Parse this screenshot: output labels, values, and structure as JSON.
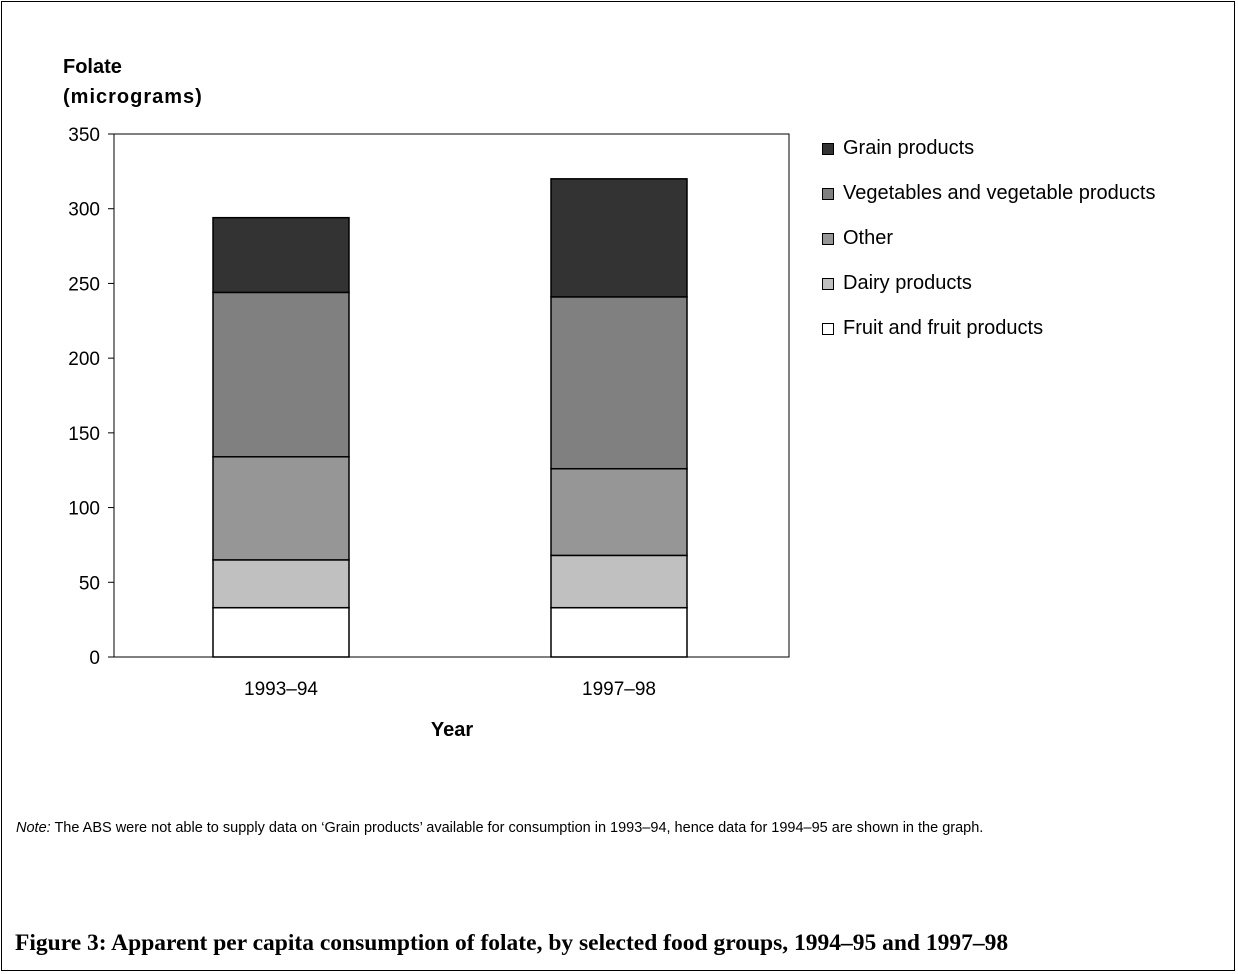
{
  "chart_data": {
    "type": "bar",
    "stacked": true,
    "ylabel": [
      "Folate",
      "(micrograms)"
    ],
    "xlabel": "Year",
    "categories": [
      "1993–94",
      "1997–98"
    ],
    "ylim": [
      0,
      350
    ],
    "yticks": [
      0,
      50,
      100,
      150,
      200,
      250,
      300,
      350
    ],
    "grid": false,
    "legend_position": "right",
    "series": [
      {
        "name": "Fruit and fruit products",
        "values": [
          33,
          33
        ],
        "color": "#ffffff"
      },
      {
        "name": "Dairy products",
        "values": [
          32,
          35
        ],
        "color": "#c0c0c0"
      },
      {
        "name": "Other",
        "values": [
          69,
          58
        ],
        "color": "#969696"
      },
      {
        "name": "Vegetables and vegetable products",
        "values": [
          110,
          115
        ],
        "color": "#808080"
      },
      {
        "name": "Grain products",
        "values": [
          50,
          79
        ],
        "color": "#333333"
      }
    ]
  },
  "note": {
    "label": "Note:",
    "text": " The ABS were not able to supply data on ‘Grain products’ available for consumption in 1993–94, hence data for 1994–95 are shown in the graph."
  },
  "caption": "Figure 3: Apparent per capita consumption of folate, by selected food groups, 1994–95 and 1997–98"
}
